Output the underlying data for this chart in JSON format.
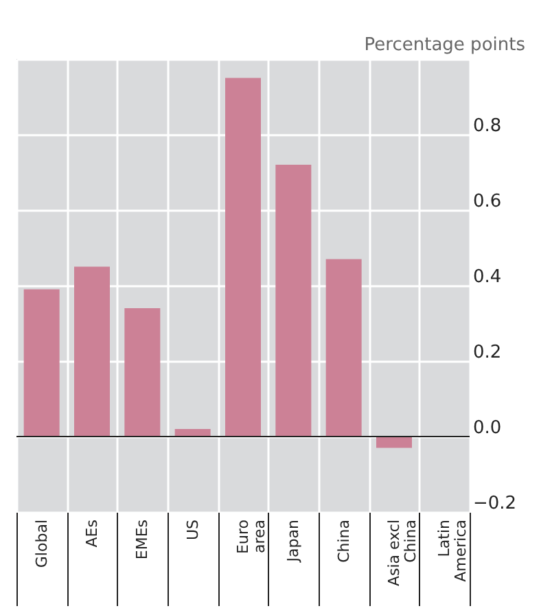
{
  "chart_data": {
    "type": "bar",
    "ylabel": "Percentage points",
    "categories": [
      "Global",
      "AEs",
      "EMEs",
      "US",
      "Euro\narea",
      "Japan",
      "China",
      "Asia excl\nChina",
      "Latin\nAmerica"
    ],
    "values": [
      0.39,
      0.45,
      0.34,
      0.02,
      0.95,
      0.72,
      0.47,
      -0.03,
      null
    ],
    "color": "#cc8196",
    "ylim": [
      -0.2,
      1.0
    ],
    "yticks": [
      {
        "value": -0.2,
        "label": "−0.2"
      },
      {
        "value": 0,
        "label": "0.0"
      },
      0.2,
      0.4,
      0.6,
      0.8,
      {
        "value": 1.0,
        "label": null
      }
    ],
    "grid": true
  }
}
